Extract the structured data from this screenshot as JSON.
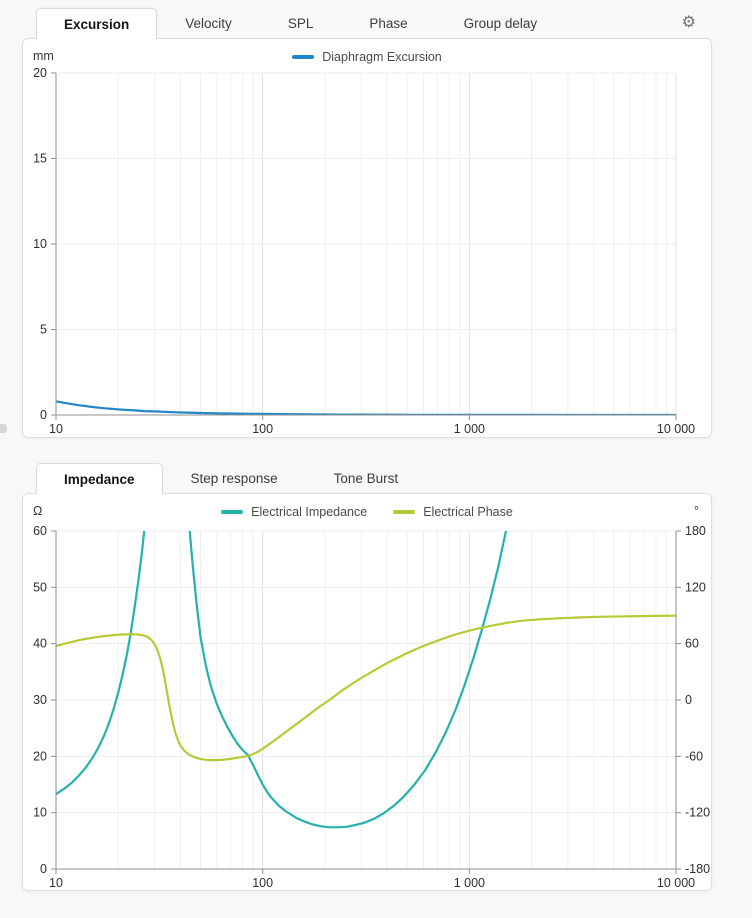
{
  "icons": {
    "gear": "⚙"
  },
  "panels": [
    {
      "tabs": [
        {
          "label": "Excursion",
          "active": true
        },
        {
          "label": "Velocity",
          "active": false
        },
        {
          "label": "SPL",
          "active": false
        },
        {
          "label": "Phase",
          "active": false
        },
        {
          "label": "Group delay",
          "active": false
        }
      ],
      "has_settings": true
    },
    {
      "tabs": [
        {
          "label": "Impedance",
          "active": true
        },
        {
          "label": "Step response",
          "active": false
        },
        {
          "label": "Tone Burst",
          "active": false
        }
      ],
      "has_settings": false
    }
  ],
  "chart_data": [
    {
      "type": "line",
      "legend_position": "top-center",
      "grid": true,
      "x_axis": {
        "scale": "log",
        "min": 10,
        "max": 10000,
        "tick_values": [
          10,
          100,
          1000,
          10000
        ],
        "tick_labels": [
          "10",
          "100",
          "1 000",
          "10 000"
        ]
      },
      "y_left": {
        "unit": "mm",
        "min": 0,
        "max": 20,
        "ticks": [
          0,
          5,
          10,
          15,
          20
        ]
      },
      "series": [
        {
          "name": "Diaphragm Excursion",
          "color": "#2187c9",
          "axis": "left",
          "points": [
            [
              10,
              0.8
            ],
            [
              11,
              0.71
            ],
            [
              12,
              0.63
            ],
            [
              13,
              0.57
            ],
            [
              14,
              0.52
            ],
            [
              15,
              0.47
            ],
            [
              17,
              0.4
            ],
            [
              19,
              0.35
            ],
            [
              21,
              0.31
            ],
            [
              24,
              0.27
            ],
            [
              27,
              0.23
            ],
            [
              30,
              0.21
            ],
            [
              34,
              0.18
            ],
            [
              38,
              0.16
            ],
            [
              43,
              0.14
            ],
            [
              48,
              0.125
            ],
            [
              54,
              0.11
            ],
            [
              60,
              0.1
            ],
            [
              70,
              0.088
            ],
            [
              80,
              0.078
            ],
            [
              90,
              0.07
            ],
            [
              100,
              0.064
            ],
            [
              120,
              0.053
            ],
            [
              140,
              0.046
            ],
            [
              170,
              0.038
            ],
            [
              200,
              0.032
            ],
            [
              250,
              0.026
            ],
            [
              300,
              0.022
            ],
            [
              400,
              0.016
            ],
            [
              500,
              0.013
            ],
            [
              700,
              0.009
            ],
            [
              1000,
              0.007
            ],
            [
              1500,
              0.004
            ],
            [
              2000,
              0.003
            ],
            [
              3000,
              0.002
            ],
            [
              5000,
              0.001
            ],
            [
              7000,
              0.001
            ],
            [
              10000,
              0.0005
            ]
          ]
        }
      ]
    },
    {
      "type": "line",
      "legend_position": "top-center",
      "grid": true,
      "x_axis": {
        "scale": "log",
        "min": 10,
        "max": 10000,
        "tick_values": [
          10,
          100,
          1000,
          10000
        ],
        "tick_labels": [
          "10",
          "100",
          "1 000",
          "10 000"
        ]
      },
      "y_left": {
        "unit": "Ω",
        "min": 0,
        "max": 60,
        "ticks": [
          0,
          10,
          20,
          30,
          40,
          50,
          60
        ]
      },
      "y_right": {
        "unit": "°",
        "min": -180,
        "max": 180,
        "ticks": [
          -180,
          -120,
          -60,
          0,
          60,
          120,
          180
        ]
      },
      "series": [
        {
          "name": "Electrical Impedance",
          "color": "#23b2ac",
          "axis": "left",
          "points": [
            [
              10,
              13.3
            ],
            [
              11,
              14.3
            ],
            [
              12,
              15.4
            ],
            [
              13,
              16.7
            ],
            [
              14,
              18.1
            ],
            [
              15,
              19.7
            ],
            [
              16,
              21.5
            ],
            [
              17,
              23.5
            ],
            [
              18,
              25.8
            ],
            [
              19,
              28.4
            ],
            [
              20,
              31.3
            ],
            [
              21,
              34.5
            ],
            [
              22,
              38
            ],
            [
              23,
              42
            ],
            [
              24,
              46.4
            ],
            [
              25,
              51
            ],
            [
              26,
              56
            ],
            [
              27,
              61.4
            ],
            [
              28,
              67
            ],
            [
              29,
              72.8
            ],
            [
              30,
              78.4
            ],
            [
              31,
              83.4
            ],
            [
              32,
              87.6
            ],
            [
              33,
              90.8
            ],
            [
              34,
              92.7
            ],
            [
              35,
              93.2
            ],
            [
              36,
              92.4
            ],
            [
              37,
              90.4
            ],
            [
              38,
              87.4
            ],
            [
              39,
              83.7
            ],
            [
              40,
              79.5
            ],
            [
              42,
              70.4
            ],
            [
              44,
              61.4
            ],
            [
              46,
              53.4
            ],
            [
              48,
              46.7
            ],
            [
              50,
              41.2
            ],
            [
              53,
              36.2
            ],
            [
              56,
              32.6
            ],
            [
              60,
              29.3
            ],
            [
              64,
              26.9
            ],
            [
              68,
              25.0
            ],
            [
              72,
              23.4
            ],
            [
              76,
              22.1
            ],
            [
              80,
              21.1
            ],
            [
              85,
              20.2
            ],
            [
              90,
              18.4
            ],
            [
              95,
              16.6
            ],
            [
              100,
              15.0
            ],
            [
              105,
              13.7
            ],
            [
              110,
              12.7
            ],
            [
              120,
              11.2
            ],
            [
              130,
              10.2
            ],
            [
              145,
              9.1
            ],
            [
              160,
              8.4
            ],
            [
              175,
              7.9
            ],
            [
              190,
              7.6
            ],
            [
              210,
              7.4
            ],
            [
              230,
              7.4
            ],
            [
              255,
              7.5
            ],
            [
              280,
              7.8
            ],
            [
              310,
              8.2
            ],
            [
              345,
              8.9
            ],
            [
              385,
              9.9
            ],
            [
              430,
              11.2
            ],
            [
              480,
              12.8
            ],
            [
              540,
              14.9
            ],
            [
              610,
              17.5
            ],
            [
              690,
              20.8
            ],
            [
              770,
              24.3
            ],
            [
              860,
              28.4
            ],
            [
              950,
              32.7
            ],
            [
              1050,
              37.6
            ],
            [
              1150,
              42.5
            ],
            [
              1260,
              47.8
            ],
            [
              1380,
              53.6
            ],
            [
              1500,
              59.8
            ],
            [
              1620,
              66.4
            ],
            [
              1750,
              73.5
            ]
          ]
        },
        {
          "name": "Electrical Phase",
          "color": "#b9c934",
          "axis": "right",
          "points": [
            [
              10,
              57.5
            ],
            [
              11,
              60
            ],
            [
              12,
              62
            ],
            [
              13,
              63.8
            ],
            [
              14,
              65.2
            ],
            [
              15,
              66.3
            ],
            [
              16,
              67.2
            ],
            [
              17,
              68
            ],
            [
              18,
              68.6
            ],
            [
              19,
              69.1
            ],
            [
              20,
              69.5
            ],
            [
              22,
              69.9
            ],
            [
              24,
              70
            ],
            [
              26,
              69.3
            ],
            [
              27,
              68.3
            ],
            [
              28,
              66.6
            ],
            [
              29,
              63.8
            ],
            [
              30,
              59.5
            ],
            [
              31,
              53
            ],
            [
              32,
              43.5
            ],
            [
              33,
              31
            ],
            [
              34,
              16
            ],
            [
              35,
              0
            ],
            [
              36,
              -15
            ],
            [
              37,
              -27
            ],
            [
              38,
              -36.5
            ],
            [
              39,
              -43.5
            ],
            [
              40,
              -48.5
            ],
            [
              42,
              -54.5
            ],
            [
              44,
              -58
            ],
            [
              46,
              -60.3
            ],
            [
              48,
              -61.8
            ],
            [
              50,
              -62.8
            ],
            [
              53,
              -63.7
            ],
            [
              56,
              -64
            ],
            [
              60,
              -64
            ],
            [
              65,
              -63.5
            ],
            [
              70,
              -62.6
            ],
            [
              75,
              -61.6
            ],
            [
              80,
              -60.6
            ],
            [
              85,
              -59.5
            ],
            [
              90,
              -57.5
            ],
            [
              95,
              -55
            ],
            [
              100,
              -52
            ],
            [
              110,
              -45.5
            ],
            [
              120,
              -39.5
            ],
            [
              135,
              -31
            ],
            [
              150,
              -23.5
            ],
            [
              170,
              -14.5
            ],
            [
              190,
              -6.5
            ],
            [
              215,
              1.5
            ],
            [
              240,
              9.5
            ],
            [
              270,
              17
            ],
            [
              300,
              23.5
            ],
            [
              340,
              30.5
            ],
            [
              390,
              38
            ],
            [
              440,
              44
            ],
            [
              500,
              50
            ],
            [
              570,
              55.5
            ],
            [
              650,
              60.5
            ],
            [
              750,
              65.5
            ],
            [
              850,
              69.5
            ],
            [
              950,
              72.5
            ],
            [
              1050,
              75
            ],
            [
              1150,
              77
            ],
            [
              1300,
              79.5
            ],
            [
              1500,
              82
            ],
            [
              1800,
              84.5
            ],
            [
              2200,
              86
            ],
            [
              2700,
              87
            ],
            [
              3500,
              88
            ],
            [
              4500,
              88.7
            ],
            [
              6000,
              89.2
            ],
            [
              8000,
              89.6
            ],
            [
              10000,
              89.8
            ]
          ]
        }
      ]
    }
  ]
}
